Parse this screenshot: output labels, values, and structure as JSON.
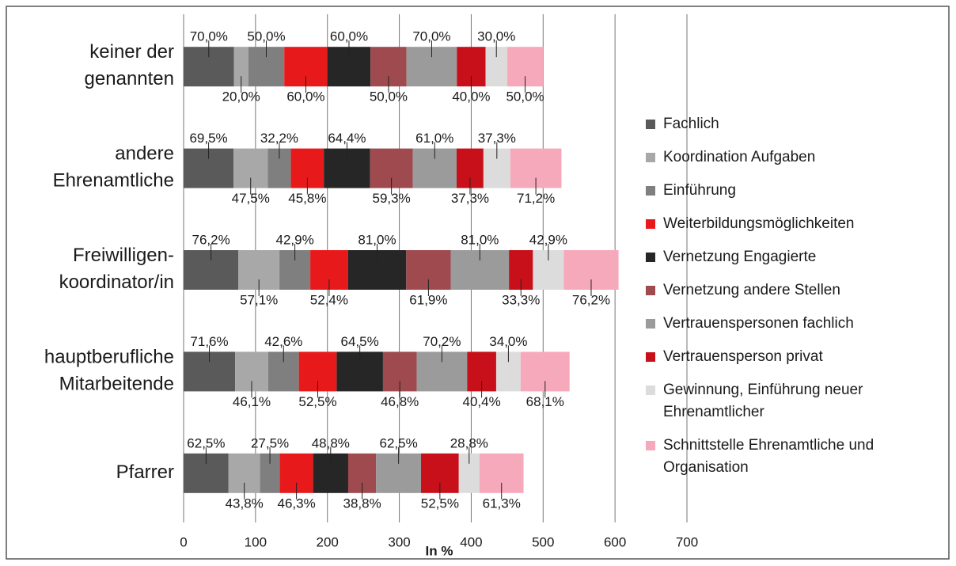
{
  "chart_data": {
    "type": "bar",
    "orientation": "horizontal",
    "stacked": true,
    "categories": [
      "keiner der\ngenannten",
      "andere\nEhrenamtliche",
      "Freiwilligen-\nkoordinator/in",
      "hauptberufliche\nMitarbeitende",
      "Pfarrer"
    ],
    "xlabel": "In %",
    "xlim": [
      0,
      700
    ],
    "xticks": [
      0,
      100,
      200,
      300,
      400,
      500,
      600,
      700
    ],
    "grid": true,
    "series": [
      {
        "name": "Fachlich",
        "color": "#5a5a5a",
        "values": [
          70.0,
          69.5,
          76.2,
          71.6,
          62.5
        ],
        "value_labels": [
          "70,0%",
          "69,5%",
          "76,2%",
          "71,6%",
          "62,5%"
        ]
      },
      {
        "name": "Koordination Aufgaben",
        "color": "#a8a8a8",
        "values": [
          20.0,
          47.5,
          57.1,
          46.1,
          43.8
        ],
        "value_labels": [
          "20,0%",
          "47,5%",
          "57,1%",
          "46,1%",
          "43,8%"
        ]
      },
      {
        "name": "Einführung",
        "color": "#7f7f7f",
        "values": [
          50.0,
          32.2,
          42.9,
          42.6,
          27.5
        ],
        "value_labels": [
          "50,0%",
          "32,2%",
          "42,9%",
          "42,6%",
          "27,5%"
        ]
      },
      {
        "name": "Weiterbildungsmöglichkeiten",
        "color": "#e8191b",
        "values": [
          60.0,
          45.8,
          52.4,
          52.5,
          46.3
        ],
        "value_labels": [
          "60,0%",
          "45,8%",
          "52,4%",
          "52,5%",
          "46,3%"
        ]
      },
      {
        "name": "Vernetzung Engagierte",
        "color": "#262626",
        "values": [
          60.0,
          64.4,
          81.0,
          64.5,
          48.8
        ],
        "value_labels": [
          "60,0%",
          "64,4%",
          "81,0%",
          "64,5%",
          "48,8%"
        ]
      },
      {
        "name": "Vernetzung andere Stellen",
        "color": "#9e4a4f",
        "values": [
          50.0,
          59.3,
          61.9,
          46.8,
          38.8
        ],
        "value_labels": [
          "50,0%",
          "59,3%",
          "61,9%",
          "46,8%",
          "38,8%"
        ]
      },
      {
        "name": "Vertrauenspersonen fachlich",
        "color": "#9b9b9b",
        "values": [
          70.0,
          61.0,
          81.0,
          70.2,
          62.5
        ],
        "value_labels": [
          "70,0%",
          "61,0%",
          "81,0%",
          "70,2%",
          "62,5%"
        ]
      },
      {
        "name": "Vertrauensperson privat",
        "color": "#c8101a",
        "values": [
          40.0,
          37.3,
          33.3,
          40.4,
          52.5
        ],
        "value_labels": [
          "40,0%",
          "37,3%",
          "33,3%",
          "40,4%",
          "52,5%"
        ]
      },
      {
        "name": "Gewinnung, Einführung neuer\nEhrenamtlicher",
        "color": "#dcdcdc",
        "values": [
          30.0,
          37.3,
          42.9,
          34.0,
          28.8
        ],
        "value_labels": [
          "30,0%",
          "37,3%",
          "42,9%",
          "34,0%",
          "28,8%"
        ]
      },
      {
        "name": "Schnittstelle Ehrenamtliche und\nOrganisation",
        "color": "#f7a9bc",
        "values": [
          50.0,
          71.2,
          76.2,
          68.1,
          61.3
        ],
        "value_labels": [
          "50,0%",
          "71,2%",
          "76,2%",
          "68,1%",
          "61,3%"
        ]
      }
    ]
  }
}
